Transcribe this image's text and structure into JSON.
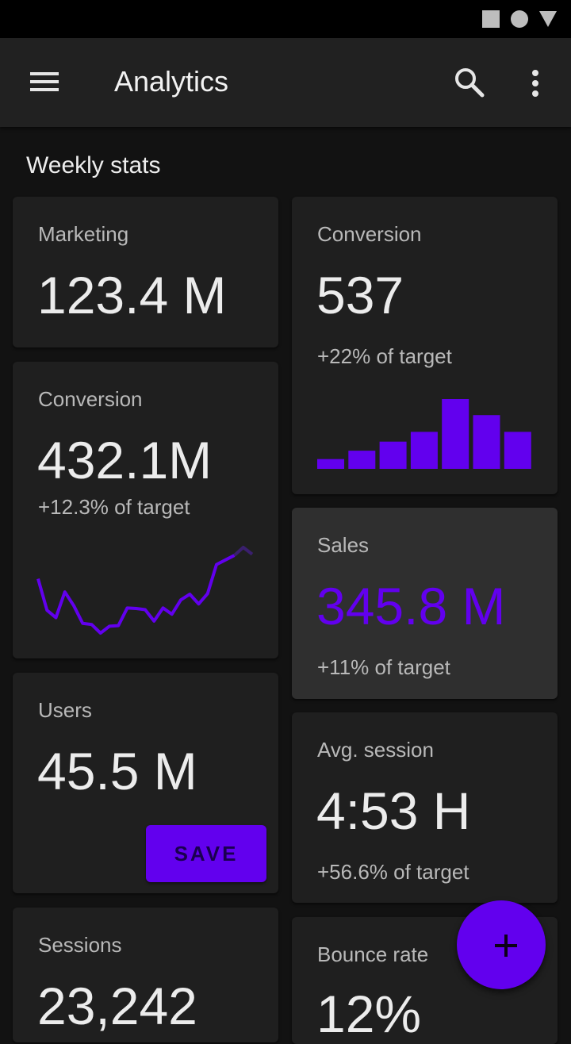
{
  "app": {
    "title": "Analytics"
  },
  "section": {
    "title": "Weekly stats"
  },
  "colors": {
    "accent": "#6200ee",
    "background": "#121212",
    "card": "#1f1f1f",
    "card_alt": "#2f2f2f"
  },
  "icons": {
    "menu": "menu-icon",
    "search": "search-icon",
    "more": "more-vert-icon",
    "fab": "add-icon"
  },
  "cards": {
    "marketing": {
      "label": "Marketing",
      "value": "123.4 M"
    },
    "conversion_bar": {
      "label": "Conversion",
      "value": "537",
      "sub": "+22% of target",
      "bars": [
        0.14,
        0.26,
        0.39,
        0.53,
        1.0,
        0.77,
        0.53
      ]
    },
    "conversion_line": {
      "label": "Conversion",
      "value": "432.1M",
      "sub": "+12.3% of target",
      "line": [
        0.95,
        0.4,
        0.27,
        0.72,
        0.48,
        0.17,
        0.15,
        0.0,
        0.12,
        0.13,
        0.44,
        0.43,
        0.41,
        0.21,
        0.44,
        0.33,
        0.58,
        0.68,
        0.51,
        0.69,
        1.2,
        1.28,
        1.36,
        1.5,
        1.38
      ]
    },
    "sales": {
      "label": "Sales",
      "value": "345.8 M",
      "sub": "+11% of target"
    },
    "users": {
      "label": "Users",
      "value": "45.5 M",
      "button": "SAVE"
    },
    "avg_session": {
      "label": "Avg. session",
      "value": "4:53 H",
      "sub": "+56.6% of target"
    },
    "sessions": {
      "label": "Sessions",
      "value": "23,242"
    },
    "bounce": {
      "label": "Bounce rate",
      "value": "12%"
    }
  }
}
